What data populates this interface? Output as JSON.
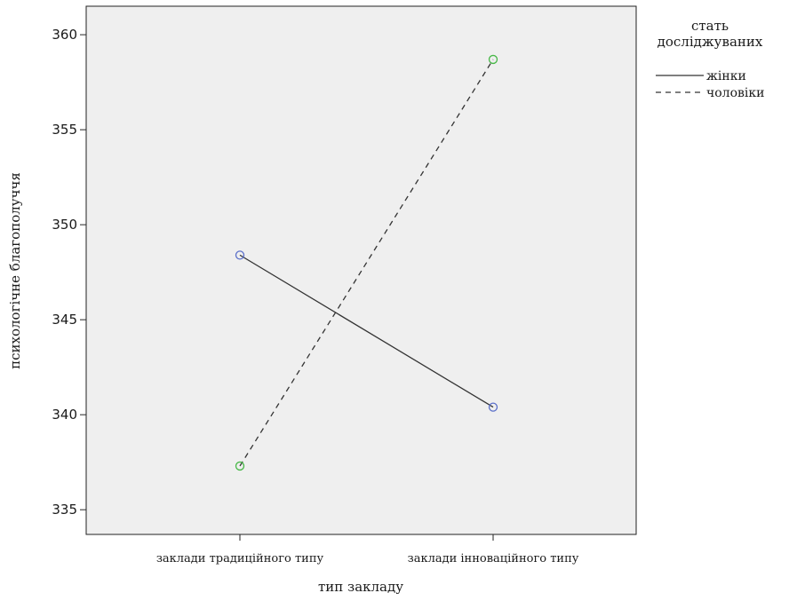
{
  "chart_data": {
    "type": "line",
    "xlabel": "тип закладу",
    "ylabel": "психологічне благополуччя",
    "categories": [
      "заклади  традиційного типу",
      "заклади інноваційного типу"
    ],
    "ylim": [
      333.7,
      361.5
    ],
    "yticks": [
      335,
      340,
      345,
      350,
      355,
      360
    ],
    "grid": false,
    "legend_position": "right",
    "legend_title": [
      "стать",
      "досліджуваних"
    ],
    "series": [
      {
        "name": "жінки",
        "values": [
          348.4,
          340.4
        ],
        "line_style": "solid",
        "line_color": "#333333",
        "marker_color": "#5a6fc9"
      },
      {
        "name": "чоловіки",
        "values": [
          337.3,
          358.7
        ],
        "line_style": "dashed",
        "line_color": "#333333",
        "marker_color": "#48b848"
      }
    ],
    "plot_background": "#efefef"
  }
}
